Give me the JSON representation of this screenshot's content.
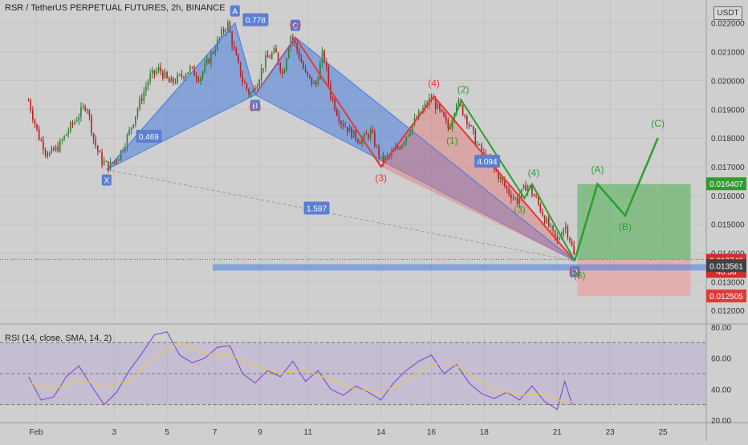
{
  "header": {
    "title": "RSR / TetherUS PERPETUAL FUTURES, 2h, BINANCE",
    "currency": "USDT"
  },
  "colors": {
    "bg": "#cfcfcf",
    "up": "#2e7d32",
    "down": "#b71c1c",
    "xabcd": "#4a7fe0",
    "wave_red": "#e53935",
    "wave_green": "#2e9c2e",
    "profit": "#4caf50",
    "loss": "#ef9a9a"
  },
  "chart_data": [
    {
      "type": "candlestick",
      "title": "RSR / TetherUS PERPETUAL FUTURES, 2h, BINANCE",
      "symbol": "RSR/USDT",
      "timeframe": "2h",
      "exchange": "BINANCE",
      "xlabel": "",
      "ylabel": "",
      "x_ticks": [
        "Feb",
        "3",
        "5",
        "7",
        "9",
        "11",
        "14",
        "16",
        "18",
        "21",
        "23",
        "25"
      ],
      "y_ticks": [
        "0.012000",
        "0.013000",
        "0.014000",
        "0.015000",
        "0.016000",
        "0.017000",
        "0.018000",
        "0.019000",
        "0.020000",
        "0.021000",
        "0.022000"
      ],
      "ylim": [
        0.0117,
        0.0228
      ],
      "price_path": [
        {
          "day": 0.0,
          "price": 0.0193
        },
        {
          "day": 0.4,
          "price": 0.01805
        },
        {
          "day": 0.8,
          "price": 0.0174
        },
        {
          "day": 1.2,
          "price": 0.0177
        },
        {
          "day": 1.6,
          "price": 0.0183
        },
        {
          "day": 2.0,
          "price": 0.0188
        },
        {
          "day": 2.3,
          "price": 0.0192
        },
        {
          "day": 2.6,
          "price": 0.0179
        },
        {
          "day": 2.9,
          "price": 0.0172
        },
        {
          "day": 3.2,
          "price": 0.017
        },
        {
          "day": 3.6,
          "price": 0.0174
        },
        {
          "day": 4.0,
          "price": 0.0182
        },
        {
          "day": 4.4,
          "price": 0.0192
        },
        {
          "day": 4.8,
          "price": 0.0201
        },
        {
          "day": 5.2,
          "price": 0.0204
        },
        {
          "day": 5.6,
          "price": 0.0199
        },
        {
          "day": 6.0,
          "price": 0.0201
        },
        {
          "day": 6.4,
          "price": 0.0204
        },
        {
          "day": 6.8,
          "price": 0.0201
        },
        {
          "day": 7.2,
          "price": 0.0208
        },
        {
          "day": 7.6,
          "price": 0.0215
        },
        {
          "day": 7.9,
          "price": 0.022
        },
        {
          "day": 8.2,
          "price": 0.0209
        },
        {
          "day": 8.5,
          "price": 0.02
        },
        {
          "day": 8.8,
          "price": 0.0195
        },
        {
          "day": 9.1,
          "price": 0.02
        },
        {
          "day": 9.4,
          "price": 0.0207
        },
        {
          "day": 9.8,
          "price": 0.021
        },
        {
          "day": 10.1,
          "price": 0.0202
        },
        {
          "day": 10.4,
          "price": 0.0216
        },
        {
          "day": 10.7,
          "price": 0.021
        },
        {
          "day": 11.0,
          "price": 0.0202
        },
        {
          "day": 11.4,
          "price": 0.0198
        },
        {
          "day": 11.7,
          "price": 0.021
        },
        {
          "day": 12.0,
          "price": 0.0195
        },
        {
          "day": 12.4,
          "price": 0.0186
        },
        {
          "day": 12.8,
          "price": 0.0182
        },
        {
          "day": 13.2,
          "price": 0.0179
        },
        {
          "day": 13.6,
          "price": 0.0182
        },
        {
          "day": 14.0,
          "price": 0.0172
        },
        {
          "day": 14.4,
          "price": 0.0174
        },
        {
          "day": 14.8,
          "price": 0.0178
        },
        {
          "day": 15.2,
          "price": 0.0184
        },
        {
          "day": 15.6,
          "price": 0.0189
        },
        {
          "day": 16.0,
          "price": 0.0194
        },
        {
          "day": 16.4,
          "price": 0.0188
        },
        {
          "day": 16.7,
          "price": 0.0183
        },
        {
          "day": 17.0,
          "price": 0.0193
        },
        {
          "day": 17.4,
          "price": 0.0187
        },
        {
          "day": 17.8,
          "price": 0.0178
        },
        {
          "day": 18.2,
          "price": 0.0172
        },
        {
          "day": 18.6,
          "price": 0.0168
        },
        {
          "day": 19.0,
          "price": 0.0162
        },
        {
          "day": 19.4,
          "price": 0.0158
        },
        {
          "day": 19.8,
          "price": 0.0164
        },
        {
          "day": 20.2,
          "price": 0.0158
        },
        {
          "day": 20.5,
          "price": 0.0152
        },
        {
          "day": 20.8,
          "price": 0.0147
        },
        {
          "day": 21.0,
          "price": 0.0144
        },
        {
          "day": 21.3,
          "price": 0.015
        },
        {
          "day": 21.5,
          "price": 0.0145
        },
        {
          "day": 21.7,
          "price": 0.01378
        }
      ],
      "harmonic_pattern": {
        "points": [
          {
            "label": "X",
            "day": 3.1,
            "price": 0.0169
          },
          {
            "label": "A",
            "day": 8.2,
            "price": 0.022
          },
          {
            "label": "B",
            "day": 9.0,
            "price": 0.0195
          },
          {
            "label": "C",
            "day": 10.6,
            "price": 0.0215
          },
          {
            "label": "D",
            "day": 21.7,
            "price": 0.01372
          }
        ],
        "ratios": [
          {
            "label": "0.469"
          },
          {
            "label": "0.778"
          },
          {
            "label": "4.094"
          },
          {
            "label": "1.597"
          }
        ]
      },
      "wave_red": {
        "points": [
          {
            "label": "(1)",
            "day": 9.0,
            "price": 0.0195
          },
          {
            "label": "(2)",
            "day": 10.6,
            "price": 0.0215
          },
          {
            "label": "(3)",
            "day": 14.0,
            "price": 0.017
          },
          {
            "label": "(4)",
            "day": 16.1,
            "price": 0.01945
          },
          {
            "label": "(5)",
            "day": 21.7,
            "price": 0.01372
          }
        ]
      },
      "wave_green_impulse": {
        "points": [
          {
            "label": "(1)",
            "day": 16.7,
            "price": 0.0183
          },
          {
            "label": "(2)",
            "day": 17.2,
            "price": 0.0193
          },
          {
            "label": "(3)",
            "day": 19.7,
            "price": 0.0159
          },
          {
            "label": "(4)",
            "day": 20.0,
            "price": 0.0164
          },
          {
            "label": "(5)",
            "day": 21.7,
            "price": 0.01372
          }
        ]
      },
      "wave_green_projection": {
        "points": [
          {
            "label": "",
            "day": 21.7,
            "price": 0.01375
          },
          {
            "label": "(A)",
            "day": 22.6,
            "price": 0.0164
          },
          {
            "label": "(B)",
            "day": 23.7,
            "price": 0.0153
          },
          {
            "label": "(C)",
            "day": 25.0,
            "price": 0.018
          }
        ]
      },
      "position": {
        "entry": 0.01378,
        "target": 0.0164,
        "stop": 0.0125
      },
      "support_zone": 0.0135,
      "price_labels": [
        {
          "text": "0.016407",
          "color": "#2e9c2e",
          "price": 0.016407
        },
        {
          "text": "0.013748",
          "color": "#d32f2f",
          "price": 0.013748
        },
        {
          "text": "40:58",
          "color": "#d32f2f",
          "price": 0.013748
        },
        {
          "text": "0.013561",
          "color": "#424242",
          "price": 0.013561
        },
        {
          "text": "0.012505",
          "color": "#e53935",
          "price": 0.012505
        }
      ]
    },
    {
      "type": "line",
      "title": "RSI (14, close, SMA, 14, 2)",
      "ylim": [
        20,
        80
      ],
      "y_ticks": [
        "20.00",
        "40.00",
        "60.00",
        "80.00"
      ],
      "levels": [
        30,
        50,
        70
      ],
      "series": [
        {
          "name": "RSI",
          "color": "#7e57c2",
          "points": [
            {
              "day": 0.0,
              "value": 48
            },
            {
              "day": 0.5,
              "value": 33
            },
            {
              "day": 1.0,
              "value": 35
            },
            {
              "day": 1.5,
              "value": 48
            },
            {
              "day": 2.0,
              "value": 55
            },
            {
              "day": 2.5,
              "value": 42
            },
            {
              "day": 3.0,
              "value": 30
            },
            {
              "day": 3.5,
              "value": 38
            },
            {
              "day": 4.0,
              "value": 52
            },
            {
              "day": 4.5,
              "value": 63
            },
            {
              "day": 5.0,
              "value": 75
            },
            {
              "day": 5.5,
              "value": 77
            },
            {
              "day": 6.0,
              "value": 62
            },
            {
              "day": 6.5,
              "value": 57
            },
            {
              "day": 7.0,
              "value": 60
            },
            {
              "day": 7.5,
              "value": 67
            },
            {
              "day": 8.0,
              "value": 68
            },
            {
              "day": 8.5,
              "value": 50
            },
            {
              "day": 9.0,
              "value": 44
            },
            {
              "day": 9.5,
              "value": 52
            },
            {
              "day": 10.0,
              "value": 48
            },
            {
              "day": 10.5,
              "value": 58
            },
            {
              "day": 11.0,
              "value": 45
            },
            {
              "day": 11.5,
              "value": 52
            },
            {
              "day": 12.0,
              "value": 40
            },
            {
              "day": 12.5,
              "value": 36
            },
            {
              "day": 13.0,
              "value": 42
            },
            {
              "day": 13.5,
              "value": 38
            },
            {
              "day": 14.0,
              "value": 33
            },
            {
              "day": 14.5,
              "value": 44
            },
            {
              "day": 15.0,
              "value": 52
            },
            {
              "day": 15.5,
              "value": 58
            },
            {
              "day": 16.0,
              "value": 62
            },
            {
              "day": 16.5,
              "value": 50
            },
            {
              "day": 17.0,
              "value": 56
            },
            {
              "day": 17.5,
              "value": 44
            },
            {
              "day": 18.0,
              "value": 37
            },
            {
              "day": 18.5,
              "value": 34
            },
            {
              "day": 19.0,
              "value": 38
            },
            {
              "day": 19.5,
              "value": 33
            },
            {
              "day": 20.0,
              "value": 42
            },
            {
              "day": 20.5,
              "value": 32
            },
            {
              "day": 21.0,
              "value": 27
            },
            {
              "day": 21.3,
              "value": 45
            },
            {
              "day": 21.6,
              "value": 30
            }
          ]
        },
        {
          "name": "RSI-based MA",
          "color": "#e6c84a",
          "points": [
            {
              "day": 0.0,
              "value": 44
            },
            {
              "day": 1.0,
              "value": 40
            },
            {
              "day": 2.0,
              "value": 46
            },
            {
              "day": 3.0,
              "value": 42
            },
            {
              "day": 4.0,
              "value": 45
            },
            {
              "day": 5.0,
              "value": 60
            },
            {
              "day": 6.0,
              "value": 70
            },
            {
              "day": 7.0,
              "value": 63
            },
            {
              "day": 8.0,
              "value": 62
            },
            {
              "day": 9.0,
              "value": 55
            },
            {
              "day": 10.0,
              "value": 50
            },
            {
              "day": 11.0,
              "value": 52
            },
            {
              "day": 12.0,
              "value": 46
            },
            {
              "day": 13.0,
              "value": 40
            },
            {
              "day": 14.0,
              "value": 38
            },
            {
              "day": 15.0,
              "value": 45
            },
            {
              "day": 16.0,
              "value": 56
            },
            {
              "day": 16.8,
              "value": 57
            },
            {
              "day": 17.5,
              "value": 50
            },
            {
              "day": 18.5,
              "value": 40
            },
            {
              "day": 19.5,
              "value": 36
            },
            {
              "day": 20.5,
              "value": 37
            },
            {
              "day": 21.2,
              "value": 32
            },
            {
              "day": 21.6,
              "value": 32
            }
          ]
        }
      ]
    }
  ]
}
